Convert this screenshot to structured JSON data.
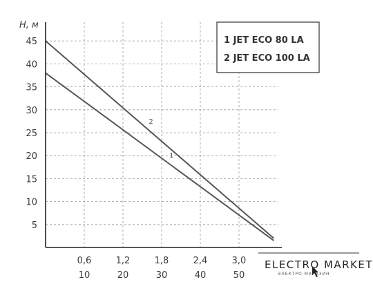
{
  "chart_data": {
    "type": "line",
    "ylabel": "H, м",
    "xlabel": "",
    "x_ticks_row1": [
      "0,6",
      "1,2",
      "1,8",
      "2,4",
      "3,0"
    ],
    "x_ticks_row2": [
      "10",
      "20",
      "30",
      "40",
      "50"
    ],
    "x_ticks_values": [
      10,
      20,
      30,
      40,
      50
    ],
    "xlim": [
      0,
      60
    ],
    "ylim": [
      0,
      50
    ],
    "y_ticks": [
      5,
      10,
      15,
      20,
      25,
      30,
      35,
      40,
      45
    ],
    "grid": true,
    "legend_position": "top-right",
    "legend": [
      "1 JET ECO 80 LA",
      "2 JET ECO 100 LA"
    ],
    "series": [
      {
        "name": "1",
        "x": [
          0,
          59
        ],
        "y": [
          38,
          1.5
        ]
      },
      {
        "name": "2",
        "x": [
          0,
          59
        ],
        "y": [
          45,
          2
        ]
      }
    ],
    "line_color": "#555555"
  },
  "brand": {
    "name": "ELECTRO MARKET",
    "tagline": "ЭЛЕКТРО МАГАЗИН"
  }
}
